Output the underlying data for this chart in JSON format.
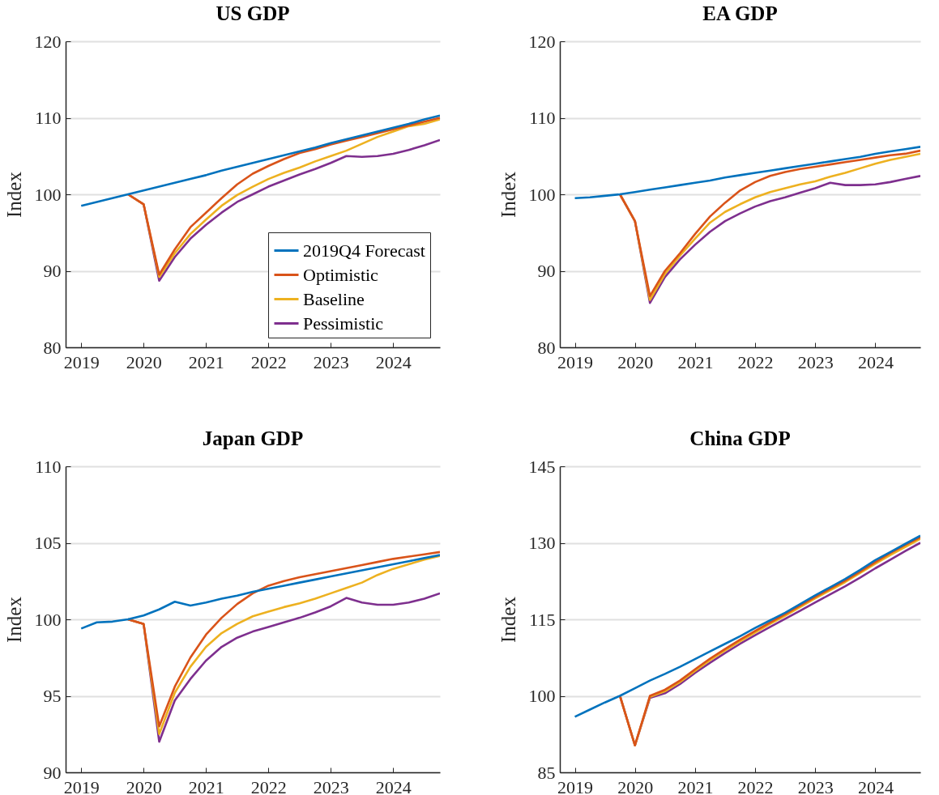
{
  "chart_data": [
    {
      "type": "line",
      "title": "US GDP",
      "ylabel": "Index",
      "x": [
        2019,
        2019.25,
        2019.5,
        2019.75,
        2020,
        2020.25,
        2020.5,
        2020.75,
        2021,
        2021.25,
        2021.5,
        2021.75,
        2022,
        2022.25,
        2022.5,
        2022.75,
        2023,
        2023.25,
        2023.5,
        2023.75,
        2024,
        2024.25,
        2024.5,
        2024.75
      ],
      "xlim": [
        2018.75,
        2024.75
      ],
      "xticks": [
        2019,
        2020,
        2021,
        2022,
        2023,
        2024
      ],
      "ylim": [
        80,
        120
      ],
      "yticks": [
        80,
        90,
        100,
        110,
        120
      ],
      "grid": "y",
      "legend": "bottom right",
      "series": [
        {
          "name": "2019Q4 Forecast",
          "color": "#0072bd",
          "values": [
            98.5,
            99.0,
            99.5,
            100.0,
            100.5,
            101.0,
            101.5,
            102.0,
            102.5,
            103.1,
            103.6,
            104.1,
            104.6,
            105.1,
            105.6,
            106.1,
            106.7,
            107.2,
            107.7,
            108.2,
            108.7,
            109.2,
            109.8,
            110.3
          ]
        },
        {
          "name": "Optimistic",
          "color": "#d95319",
          "values": [
            null,
            null,
            null,
            100,
            98.7,
            89.5,
            92.8,
            95.7,
            97.6,
            99.5,
            101.3,
            102.7,
            103.7,
            104.6,
            105.4,
            105.9,
            106.5,
            107.0,
            107.5,
            108.0,
            108.5,
            109.0,
            109.5,
            110.0
          ]
        },
        {
          "name": "Baseline",
          "color": "#edb120",
          "values": [
            null,
            null,
            null,
            100,
            98.7,
            89.2,
            92.3,
            94.8,
            96.7,
            98.5,
            99.9,
            101.0,
            102.0,
            102.8,
            103.5,
            104.3,
            105.0,
            105.7,
            106.6,
            107.5,
            108.2,
            108.9,
            109.2,
            109.8
          ]
        },
        {
          "name": "Pessimistic",
          "color": "#7e2f8e",
          "values": [
            null,
            null,
            null,
            100,
            98.7,
            88.7,
            91.8,
            94.2,
            96.0,
            97.6,
            99.0,
            100.0,
            101.0,
            101.8,
            102.6,
            103.3,
            104.1,
            105.0,
            104.9,
            105.0,
            105.3,
            105.8,
            106.4,
            107.1
          ]
        }
      ]
    },
    {
      "type": "line",
      "title": "EA GDP",
      "ylabel": "Index",
      "x": [
        2019,
        2019.25,
        2019.5,
        2019.75,
        2020,
        2020.25,
        2020.5,
        2020.75,
        2021,
        2021.25,
        2021.5,
        2021.75,
        2022,
        2022.25,
        2022.5,
        2022.75,
        2023,
        2023.25,
        2023.5,
        2023.75,
        2024,
        2024.25,
        2024.5,
        2024.75
      ],
      "xlim": [
        2018.75,
        2024.75
      ],
      "xticks": [
        2019,
        2020,
        2021,
        2022,
        2023,
        2024
      ],
      "ylim": [
        80,
        120
      ],
      "yticks": [
        80,
        90,
        100,
        110,
        120
      ],
      "grid": "y",
      "series": [
        {
          "color": "#0072bd",
          "values": [
            99.5,
            99.6,
            99.8,
            100.0,
            100.3,
            100.6,
            100.9,
            101.2,
            101.5,
            101.8,
            102.2,
            102.5,
            102.8,
            103.1,
            103.4,
            103.7,
            104.0,
            104.3,
            104.6,
            104.9,
            105.3,
            105.6,
            105.9,
            106.2
          ]
        },
        {
          "color": "#d95319",
          "values": [
            null,
            null,
            null,
            100,
            96.5,
            86.7,
            90.0,
            92.3,
            94.8,
            97.1,
            98.9,
            100.5,
            101.6,
            102.4,
            102.9,
            103.3,
            103.6,
            103.9,
            104.2,
            104.5,
            104.8,
            105.1,
            105.3,
            105.7
          ]
        },
        {
          "color": "#edb120",
          "values": [
            null,
            null,
            null,
            100,
            96.5,
            86.2,
            89.6,
            92.0,
            94.2,
            96.3,
            97.7,
            98.7,
            99.6,
            100.3,
            100.8,
            101.3,
            101.7,
            102.3,
            102.8,
            103.4,
            104.0,
            104.5,
            104.9,
            105.3
          ]
        },
        {
          "color": "#7e2f8e",
          "values": [
            null,
            null,
            null,
            100,
            96.5,
            85.8,
            89.2,
            91.5,
            93.4,
            95.1,
            96.5,
            97.5,
            98.4,
            99.1,
            99.6,
            100.2,
            100.8,
            101.5,
            101.2,
            101.2,
            101.3,
            101.6,
            102.0,
            102.4
          ]
        }
      ]
    },
    {
      "type": "line",
      "title": "Japan GDP",
      "ylabel": "Index",
      "x": [
        2019,
        2019.25,
        2019.5,
        2019.75,
        2020,
        2020.25,
        2020.5,
        2020.75,
        2021,
        2021.25,
        2021.5,
        2021.75,
        2022,
        2022.25,
        2022.5,
        2022.75,
        2023,
        2023.25,
        2023.5,
        2023.75,
        2024,
        2024.25,
        2024.5,
        2024.75
      ],
      "xlim": [
        2018.75,
        2024.75
      ],
      "xticks": [
        2019,
        2020,
        2021,
        2022,
        2023,
        2024
      ],
      "ylim": [
        90,
        110
      ],
      "yticks": [
        90,
        95,
        100,
        105,
        110
      ],
      "grid": "y",
      "series": [
        {
          "color": "#0072bd",
          "values": [
            99.4,
            99.8,
            99.85,
            100.0,
            100.25,
            100.65,
            101.15,
            100.9,
            101.1,
            101.35,
            101.55,
            101.8,
            102.0,
            102.2,
            102.4,
            102.6,
            102.8,
            103.0,
            103.2,
            103.4,
            103.6,
            103.8,
            104.0,
            104.2
          ]
        },
        {
          "color": "#d95319",
          "values": [
            null,
            null,
            null,
            100,
            99.7,
            93.0,
            95.6,
            97.5,
            99.0,
            100.1,
            101.0,
            101.7,
            102.2,
            102.5,
            102.75,
            102.95,
            103.15,
            103.35,
            103.55,
            103.75,
            103.95,
            104.1,
            104.25,
            104.4
          ]
        },
        {
          "color": "#edb120",
          "values": [
            null,
            null,
            null,
            100,
            99.7,
            92.5,
            95.2,
            96.9,
            98.2,
            99.1,
            99.7,
            100.2,
            100.5,
            100.8,
            101.05,
            101.35,
            101.7,
            102.05,
            102.4,
            102.9,
            103.3,
            103.6,
            103.9,
            104.15
          ]
        },
        {
          "color": "#7e2f8e",
          "values": [
            null,
            null,
            null,
            100,
            99.7,
            92.0,
            94.7,
            96.1,
            97.3,
            98.2,
            98.8,
            99.2,
            99.5,
            99.8,
            100.1,
            100.45,
            100.85,
            101.4,
            101.1,
            100.95,
            100.95,
            101.1,
            101.35,
            101.7
          ]
        }
      ]
    },
    {
      "type": "line",
      "title": "China GDP",
      "ylabel": "Index",
      "x": [
        2019,
        2019.25,
        2019.5,
        2019.75,
        2020,
        2020.25,
        2020.5,
        2020.75,
        2021,
        2021.25,
        2021.5,
        2021.75,
        2022,
        2022.25,
        2022.5,
        2022.75,
        2023,
        2023.25,
        2023.5,
        2023.75,
        2024,
        2024.25,
        2024.5,
        2024.75
      ],
      "xlim": [
        2018.75,
        2024.75
      ],
      "xticks": [
        2019,
        2020,
        2021,
        2022,
        2023,
        2024
      ],
      "ylim": [
        85,
        145
      ],
      "yticks": [
        85,
        100,
        115,
        130,
        145
      ],
      "grid": "y",
      "series": [
        {
          "color": "#0072bd",
          "values": [
            95.9,
            97.3,
            98.7,
            100.0,
            101.5,
            103.0,
            104.3,
            105.7,
            107.2,
            108.7,
            110.2,
            111.7,
            113.3,
            114.8,
            116.3,
            118.0,
            119.7,
            121.3,
            122.9,
            124.7,
            126.6,
            128.2,
            129.8,
            131.4
          ]
        },
        {
          "color": "#d95319",
          "values": [
            null,
            null,
            null,
            100,
            90.3,
            100.0,
            101.2,
            103.0,
            105.2,
            107.3,
            109.2,
            111.0,
            112.7,
            114.4,
            116.0,
            117.7,
            119.4,
            121.0,
            122.6,
            124.4,
            126.2,
            128.0,
            129.6,
            131.1
          ]
        },
        {
          "color": "#edb120",
          "values": [
            null,
            null,
            null,
            100,
            90.3,
            99.8,
            100.9,
            102.7,
            104.9,
            107.0,
            108.9,
            110.7,
            112.4,
            114.1,
            115.7,
            117.4,
            119.1,
            120.7,
            122.3,
            124.1,
            125.9,
            127.6,
            129.2,
            130.8
          ]
        },
        {
          "color": "#7e2f8e",
          "values": [
            null,
            null,
            null,
            100,
            90.3,
            99.6,
            100.5,
            102.3,
            104.5,
            106.5,
            108.4,
            110.2,
            111.9,
            113.5,
            115.1,
            116.7,
            118.3,
            119.9,
            121.5,
            123.2,
            125.0,
            126.7,
            128.4,
            130.0
          ]
        }
      ]
    }
  ]
}
